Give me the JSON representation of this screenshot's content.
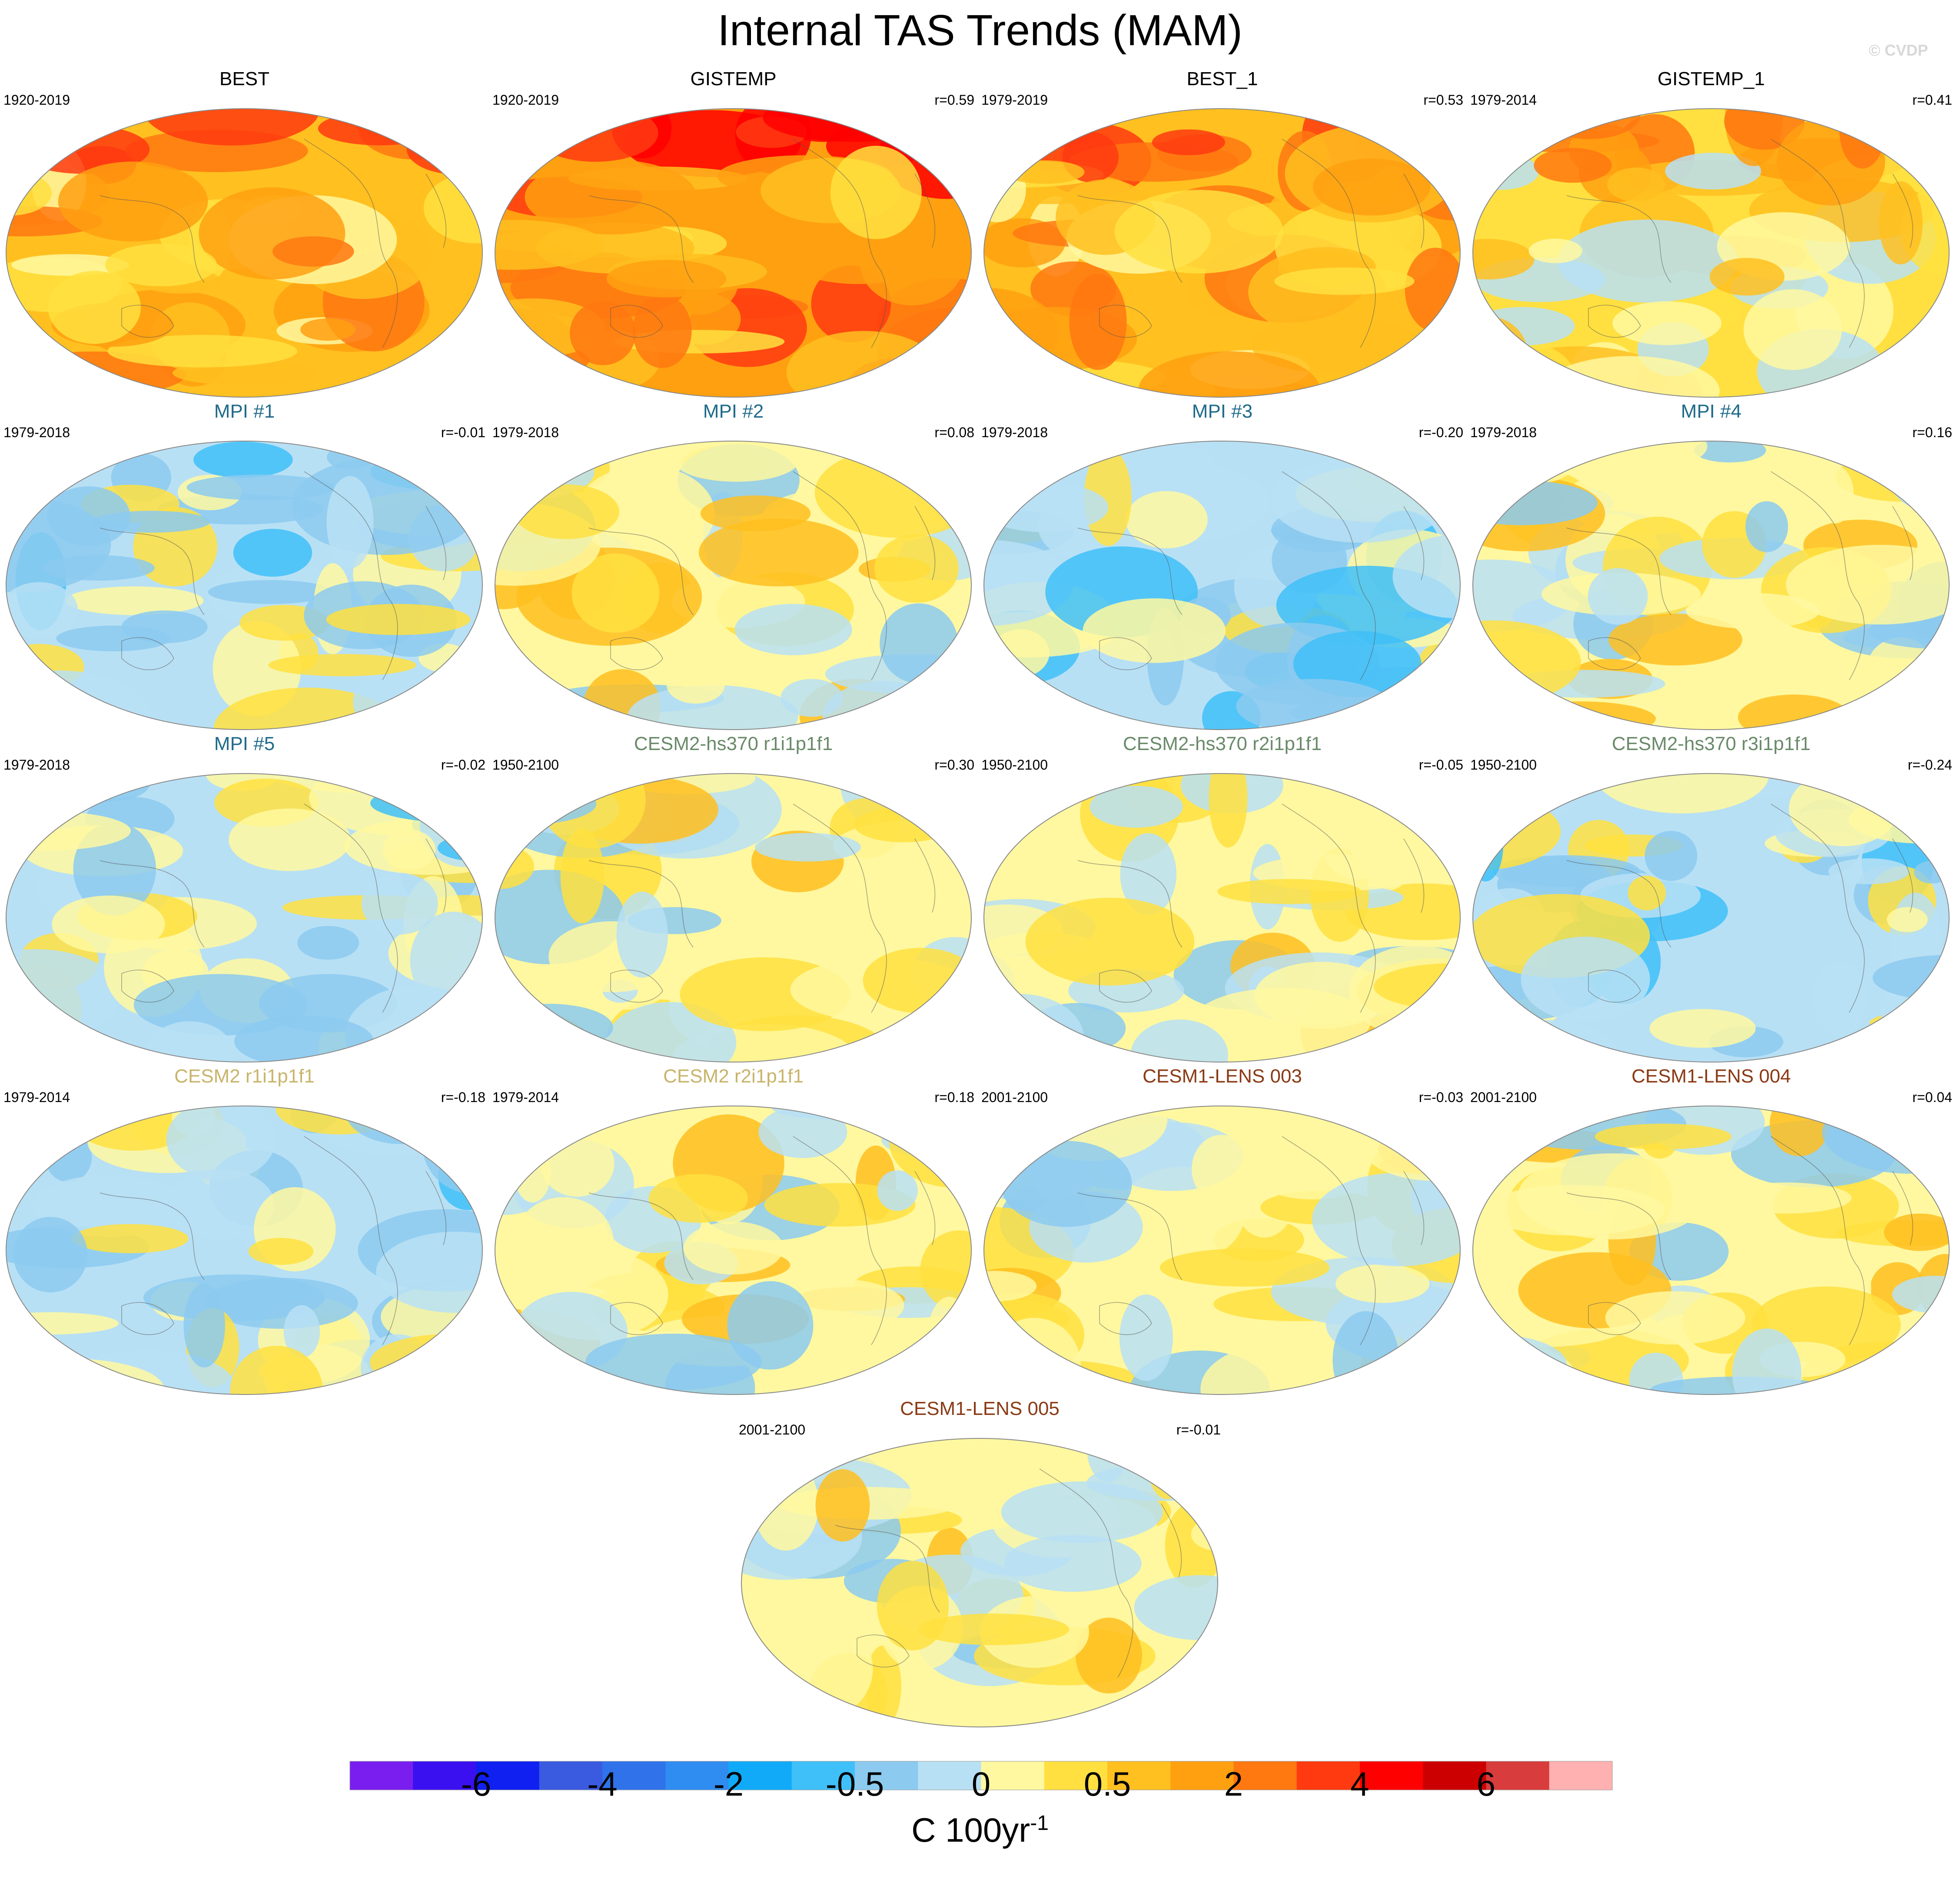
{
  "title": "Internal TAS Trends (MAM)",
  "watermark": "© CVDP",
  "panels": [
    {
      "title": "BEST",
      "title_color": "#000000",
      "period": "1920-2019",
      "r": "",
      "mean_level": 12.3,
      "pattern": 1
    },
    {
      "title": "GISTEMP",
      "title_color": "#000000",
      "period": "1920-2019",
      "r": "r=0.59",
      "mean_level": 12.5,
      "pattern": 2
    },
    {
      "title": "BEST_1",
      "title_color": "#000000",
      "period": "1979-2019",
      "r": "r=0.53",
      "mean_level": 11.6,
      "pattern": 3
    },
    {
      "title": "GISTEMP_1",
      "title_color": "#000000",
      "period": "1979-2014",
      "r": "r=0.41",
      "mean_level": 11.2,
      "pattern": 4
    },
    {
      "title": "MPI #1",
      "title_color": "#1f6a8a",
      "period": "1979-2018",
      "r": "r=-0.01",
      "mean_level": 9.4,
      "pattern": 5
    },
    {
      "title": "MPI #2",
      "title_color": "#1f6a8a",
      "period": "1979-2018",
      "r": "r=0.08",
      "mean_level": 10.2,
      "pattern": 6
    },
    {
      "title": "MPI #3",
      "title_color": "#1f6a8a",
      "period": "1979-2018",
      "r": "r=-0.20",
      "mean_level": 9.0,
      "pattern": 7
    },
    {
      "title": "MPI #4",
      "title_color": "#1f6a8a",
      "period": "1979-2018",
      "r": "r=0.16",
      "mean_level": 9.8,
      "pattern": 8
    },
    {
      "title": "MPI #5",
      "title_color": "#1f6a8a",
      "period": "1979-2018",
      "r": "r=-0.02",
      "mean_level": 9.3,
      "pattern": 9
    },
    {
      "title": "CESM2-hs370 r1i1p1f1",
      "title_color": "#6a8a6a",
      "period": "1950-2100",
      "r": "r=0.30",
      "mean_level": 10.0,
      "pattern": 10
    },
    {
      "title": "CESM2-hs370 r2i1p1f1",
      "title_color": "#6a8a6a",
      "period": "1950-2100",
      "r": "r=-0.05",
      "mean_level": 9.6,
      "pattern": 11
    },
    {
      "title": "CESM2-hs370 r3i1p1f1",
      "title_color": "#6a8a6a",
      "period": "1950-2100",
      "r": "r=-0.24",
      "mean_level": 9.3,
      "pattern": 12
    },
    {
      "title": "CESM2 r1i1p1f1",
      "title_color": "#c8b46a",
      "period": "1979-2014",
      "r": "r=-0.18",
      "mean_level": 9.3,
      "pattern": 13
    },
    {
      "title": "CESM2 r2i1p1f1",
      "title_color": "#c8b46a",
      "period": "1979-2014",
      "r": "r=0.18",
      "mean_level": 9.8,
      "pattern": 14
    },
    {
      "title": "CESM1-LENS 003",
      "title_color": "#8a3a14",
      "period": "2001-2100",
      "r": "r=-0.03",
      "mean_level": 9.7,
      "pattern": 15
    },
    {
      "title": "CESM1-LENS 004",
      "title_color": "#8a3a14",
      "period": "2001-2100",
      "r": "r=0.04",
      "mean_level": 9.7,
      "pattern": 16
    },
    {
      "title": "CESM1-LENS 005",
      "title_color": "#8a3a14",
      "period": "2001-2100",
      "r": "r=-0.01",
      "mean_level": 9.6,
      "pattern": 17
    }
  ],
  "colorbar": {
    "colors": [
      "#7a1ef0",
      "#3a10f0",
      "#1020f0",
      "#3a5ae0",
      "#2f72ea",
      "#2f8cf0",
      "#10aaf8",
      "#40c0f8",
      "#8ccaf0",
      "#b8e0f4",
      "#fff8a0",
      "#ffe040",
      "#ffc020",
      "#ffa010",
      "#ff7810",
      "#ff3a10",
      "#ff0000",
      "#cc0000",
      "#d83c3c",
      "#ffb0b0"
    ],
    "tick_labels": [
      "-6",
      "-4",
      "-2",
      "-0.5",
      "0",
      "0.5",
      "2",
      "4",
      "6"
    ],
    "unit_base": "C 100yr",
    "unit_exp": "-1"
  }
}
